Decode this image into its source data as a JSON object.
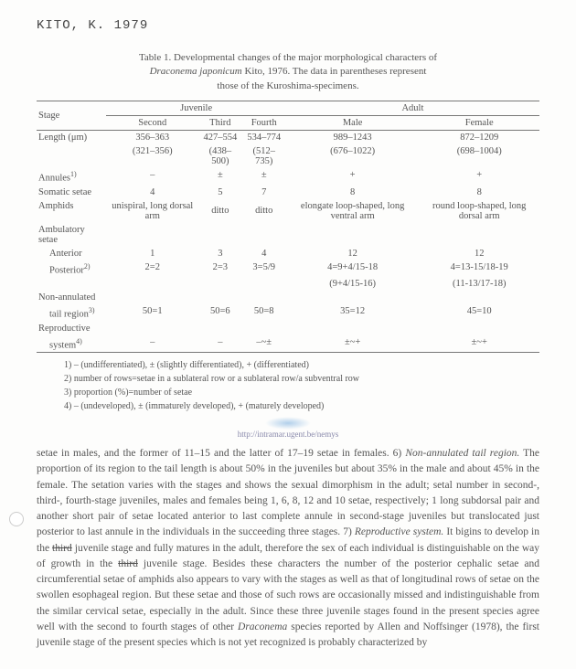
{
  "header": {
    "citation": "KITO, K.  1979"
  },
  "table": {
    "caption_line1": "Table 1.  Developmental changes of the major morphological characters of",
    "caption_line2_pre": "Draconema japonicum",
    "caption_line2_post": " Kito, 1976.  The data in parentheses represent",
    "caption_line3": "those of the Kuroshima-specimens.",
    "col_stage": "Stage",
    "col_juv": "Juvenile",
    "col_adult": "Adult",
    "sub": {
      "second": "Second",
      "third": "Third",
      "fourth": "Fourth",
      "male": "Male",
      "female": "Female"
    },
    "rows": {
      "length_lbl": "Length (μm)",
      "length": [
        "356–363",
        "427–554",
        "534–774",
        "989–1243",
        "872–1209"
      ],
      "length_p": [
        "(321–356)",
        "(438–500)",
        "(512–735)",
        "(676–1022)",
        "(698–1004)"
      ],
      "annules_lbl": "Annules",
      "annules_sup": "1)",
      "annules": [
        "–",
        "±",
        "±",
        "+",
        "+"
      ],
      "somatic_lbl": "Somatic setae",
      "somatic": [
        "4",
        "5",
        "7",
        "8",
        "8"
      ],
      "amphids_lbl": "Amphids",
      "amphids": [
        "unispiral, long dorsal arm",
        "ditto",
        "ditto",
        "elongate loop-shaped, long ventral arm",
        "round loop-shaped, long dorsal arm"
      ],
      "amb_lbl": "Ambulatory setae",
      "ant_lbl": "Anterior",
      "ant": [
        "1",
        "3",
        "4",
        "12",
        "12"
      ],
      "post_lbl": "Posterior",
      "post_sup": "2)",
      "post": [
        "2=2",
        "2=3",
        "3=5/9",
        "4=9+4/15-18",
        "4=13-15/18-19"
      ],
      "post2": [
        "",
        "",
        "",
        "(9+4/15-16)",
        "(11-13/17-18)"
      ],
      "nonann_lbl": "Non-annulated",
      "tail_lbl": "tail region",
      "tail_sup": "3)",
      "tail": [
        "50=1",
        "50=6",
        "50=8",
        "35=12",
        "45=10"
      ],
      "rep_lbl": "Reproductive",
      "sys_lbl": "system",
      "sys_sup": "4)",
      "sys": [
        "–",
        "–",
        "–~±",
        "±~+",
        "±~+"
      ]
    }
  },
  "notes": {
    "n1": "1) – (undifferentiated), ± (slightly differentiated), + (differentiated)",
    "n2": "2) number of rows=setae in a sublateral row or a sublateral row/a subventral row",
    "n3": "3) proportion (%)=number of setae",
    "n4": "4) – (undeveloped), ± (immaturely developed), + (maturely developed)"
  },
  "watermark": {
    "url": "http://intramar.ugent.be/nemys"
  },
  "body": {
    "text": "setae in males, and the former of 11–15 and the latter of 17–19 setae in females. 6) <span class=\"italic\">Non-annulated tail region.</span> The proportion of its region to the tail length is about 50% in the juveniles but about 35% in the male and about 45% in the female. The setation varies with the stages and shows the sexual dimorphism in the adult; setal number in second-, third-, fourth-stage juveniles, males and females being 1, 6, 8, 12 and 10 setae, respectively; 1 long subdorsal pair and another short pair of setae located anterior to last complete annule in second-stage juveniles but translocated just posterior to last annule in the individuals in the succeeding three stages. 7) <span class=\"italic\">Reproductive system.</span> It bigins to develop in the <span class=\"strike\">third</span> juvenile stage and fully matures in the adult, therefore the sex of each individual is distinguishable on the way of growth in the <span class=\"strike\">third</span> juvenile stage. Besides these characters the number of the posterior cephalic setae and circumferential setae of amphids also appears to vary with the stages as well as that of longitudinal rows of setae on the swollen esophageal region. But these setae and those of such rows are occasionally missed and indistinguishable from the similar cervical setae, especially in the adult. Since these three juvenile stages found in the present species agree well with the second to fourth stages of other <span class=\"italic\">Draconema</span> species reported by Allen and Noffsinger (1978), the first juvenile stage of the present species which is not yet recognized is probably characterized by"
  }
}
